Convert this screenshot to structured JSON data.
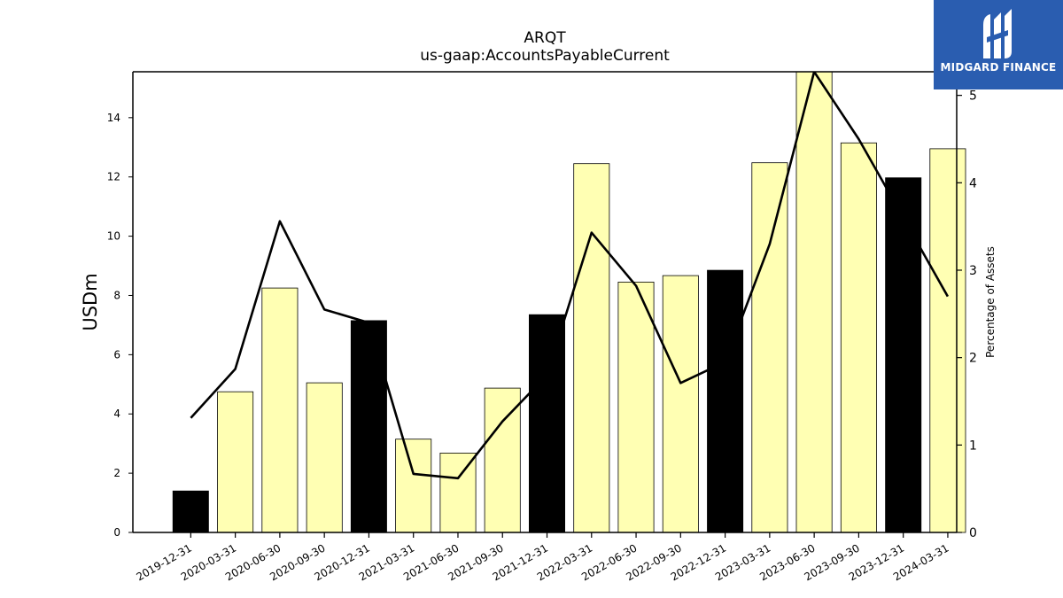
{
  "chart_data": {
    "type": "bar",
    "title": "ARQT",
    "subtitle": "us-gaap:AccountsPayableCurrent",
    "ylabel": "USDm",
    "y2label": "Percentage of Assets",
    "ylim": [
      0,
      15.55
    ],
    "y2lim": [
      0,
      5.27
    ],
    "yticks": [
      0,
      2,
      4,
      6,
      8,
      10,
      12,
      14
    ],
    "y2ticks": [
      0,
      1,
      2,
      3,
      4,
      5
    ],
    "categories": [
      "2019-12-31",
      "2020-03-31",
      "2020-06-30",
      "2020-09-30",
      "2020-12-31",
      "2021-03-31",
      "2021-06-30",
      "2021-09-30",
      "2021-12-31",
      "2022-03-31",
      "2022-06-30",
      "2022-09-30",
      "2022-12-31",
      "2023-03-31",
      "2023-06-30",
      "2023-09-30",
      "2023-12-31",
      "2024-03-31"
    ],
    "series": [
      {
        "type": "bar",
        "axis": "left",
        "values": [
          1.4,
          4.75,
          8.25,
          5.05,
          7.15,
          3.15,
          2.68,
          4.87,
          7.35,
          12.45,
          8.45,
          8.67,
          8.85,
          12.48,
          15.6,
          13.15,
          11.97,
          12.95
        ],
        "colors": [
          "#000000",
          "#ffffb3",
          "#ffffb3",
          "#ffffb3",
          "#000000",
          "#ffffb3",
          "#ffffb3",
          "#ffffb3",
          "#000000",
          "#ffffb3",
          "#ffffb3",
          "#ffffb3",
          "#000000",
          "#ffffb3",
          "#ffffb3",
          "#ffffb3",
          "#000000",
          "#ffffb3"
        ]
      },
      {
        "type": "line",
        "axis": "right",
        "color": "#000000",
        "values": [
          1.31,
          1.87,
          3.56,
          2.55,
          2.4,
          0.67,
          0.62,
          1.27,
          1.8,
          3.43,
          2.82,
          1.71,
          1.95,
          3.3,
          5.27,
          4.5,
          3.6,
          2.7
        ]
      }
    ],
    "grid": false,
    "legend": "none"
  },
  "logo": {
    "text": "MIDGARD FINANCE"
  }
}
